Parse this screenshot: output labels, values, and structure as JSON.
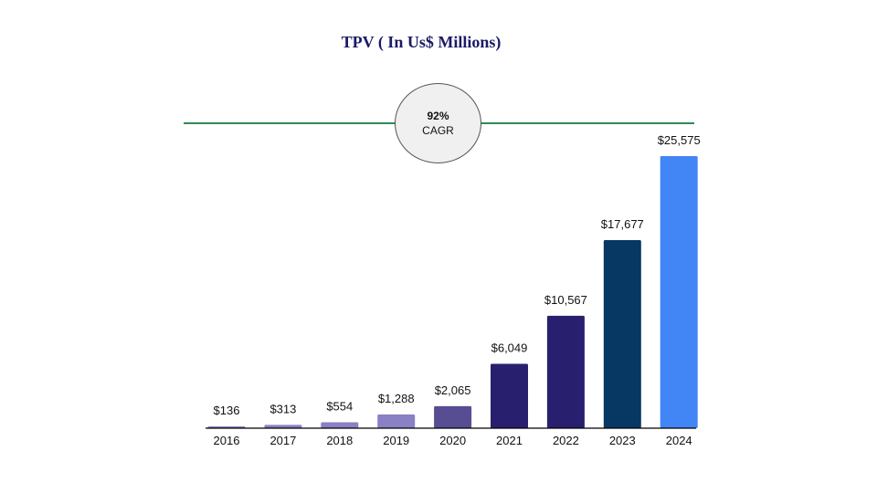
{
  "chart_data": {
    "type": "bar",
    "title": "TPV ( In Us$ Millions)",
    "xlabel": "",
    "ylabel": "",
    "categories": [
      "2016",
      "2017",
      "2018",
      "2019",
      "2020",
      "2021",
      "2022",
      "2023",
      "2024"
    ],
    "values": [
      136,
      313,
      554,
      1288,
      2065,
      6049,
      10567,
      17677,
      25575
    ],
    "value_labels": [
      "$136",
      "$313",
      "$554",
      "$1,288",
      "$2,065",
      "$6,049",
      "$10,567",
      "$17,677",
      "$25,575"
    ],
    "bar_colors": [
      "#8a80c4",
      "#8a80c4",
      "#8a80c4",
      "#8a80c4",
      "#574d93",
      "#28206f",
      "#28206f",
      "#073763",
      "#4285f4"
    ],
    "ylim": [
      0,
      25575
    ],
    "grid": false,
    "legend": "none",
    "annotation": {
      "value": "92%",
      "label": "CAGR",
      "line_color": "#2e8b57"
    }
  }
}
